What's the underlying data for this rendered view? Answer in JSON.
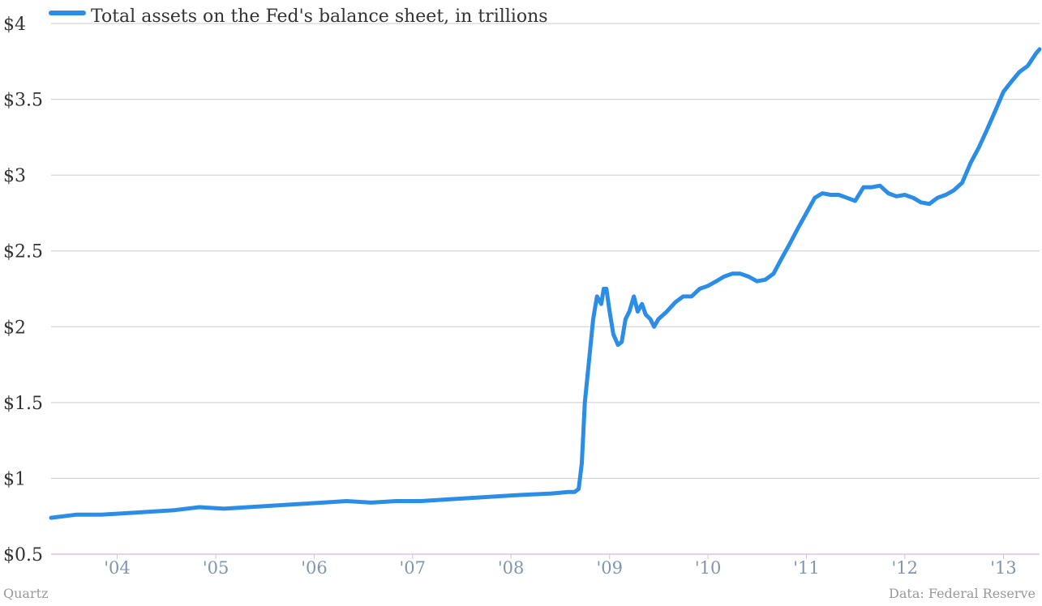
{
  "chart_data": {
    "type": "line",
    "legend_position": "top-left",
    "grid": true,
    "ylim": [
      0.5,
      4
    ],
    "xlim": [
      "2003-05-01",
      "2013-05-15"
    ],
    "y_ticks": [
      {
        "value": 0.5,
        "label": "$0.5"
      },
      {
        "value": 1,
        "label": "$1"
      },
      {
        "value": 1.5,
        "label": "$1.5"
      },
      {
        "value": 2,
        "label": "$2"
      },
      {
        "value": 2.5,
        "label": "$2.5"
      },
      {
        "value": 3,
        "label": "$3"
      },
      {
        "value": 3.5,
        "label": "$3.5"
      },
      {
        "value": 4,
        "label": "$4"
      }
    ],
    "x_ticks": [
      {
        "date": "2004-01-01",
        "label": "'04"
      },
      {
        "date": "2005-01-01",
        "label": "'05"
      },
      {
        "date": "2006-01-01",
        "label": "'06"
      },
      {
        "date": "2007-01-01",
        "label": "'07"
      },
      {
        "date": "2008-01-01",
        "label": "'08"
      },
      {
        "date": "2009-01-01",
        "label": "'09"
      },
      {
        "date": "2010-01-01",
        "label": "'10"
      },
      {
        "date": "2011-01-01",
        "label": "'11"
      },
      {
        "date": "2012-01-01",
        "label": "'12"
      },
      {
        "date": "2013-01-01",
        "label": "'13"
      }
    ],
    "series": [
      {
        "name": "Total assets on the Fed's balance sheet, in trillions",
        "color": "#2b8de6",
        "x": [
          "2003-05-01",
          "2003-08-01",
          "2003-11-01",
          "2004-02-01",
          "2004-05-01",
          "2004-08-01",
          "2004-11-01",
          "2005-02-01",
          "2005-05-01",
          "2005-08-01",
          "2005-11-01",
          "2006-02-01",
          "2006-05-01",
          "2006-08-01",
          "2006-11-01",
          "2007-02-01",
          "2007-05-01",
          "2007-08-01",
          "2007-11-01",
          "2008-02-01",
          "2008-06-01",
          "2008-08-01",
          "2008-08-24",
          "2008-09-08",
          "2008-09-20",
          "2008-10-01",
          "2008-10-15",
          "2008-11-01",
          "2008-11-15",
          "2008-12-01",
          "2008-12-10",
          "2008-12-20",
          "2009-01-01",
          "2009-01-15",
          "2009-02-01",
          "2009-02-15",
          "2009-03-01",
          "2009-03-15",
          "2009-04-01",
          "2009-04-15",
          "2009-05-01",
          "2009-05-15",
          "2009-06-01",
          "2009-06-15",
          "2009-07-01",
          "2009-08-01",
          "2009-09-01",
          "2009-10-01",
          "2009-11-01",
          "2009-12-01",
          "2010-01-01",
          "2010-02-01",
          "2010-03-01",
          "2010-04-01",
          "2010-05-01",
          "2010-06-01",
          "2010-07-01",
          "2010-08-01",
          "2010-09-01",
          "2010-10-01",
          "2010-11-01",
          "2010-12-01",
          "2011-01-01",
          "2011-02-01",
          "2011-03-01",
          "2011-04-01",
          "2011-05-01",
          "2011-06-01",
          "2011-07-01",
          "2011-08-01",
          "2011-09-01",
          "2011-10-01",
          "2011-11-01",
          "2011-12-01",
          "2012-01-01",
          "2012-02-01",
          "2012-03-01",
          "2012-04-01",
          "2012-05-01",
          "2012-06-01",
          "2012-07-01",
          "2012-08-01",
          "2012-09-01",
          "2012-10-01",
          "2012-11-01",
          "2012-12-01",
          "2013-01-01",
          "2013-02-01",
          "2013-03-01",
          "2013-04-01",
          "2013-05-01",
          "2013-05-15"
        ],
        "values": [
          0.74,
          0.76,
          0.76,
          0.77,
          0.78,
          0.79,
          0.81,
          0.8,
          0.81,
          0.82,
          0.83,
          0.84,
          0.85,
          0.84,
          0.85,
          0.85,
          0.86,
          0.87,
          0.88,
          0.89,
          0.9,
          0.91,
          0.91,
          0.93,
          1.1,
          1.5,
          1.75,
          2.05,
          2.2,
          2.15,
          2.25,
          2.25,
          2.1,
          1.95,
          1.88,
          1.9,
          2.05,
          2.1,
          2.2,
          2.1,
          2.15,
          2.08,
          2.05,
          2.0,
          2.05,
          2.1,
          2.16,
          2.2,
          2.2,
          2.25,
          2.27,
          2.3,
          2.33,
          2.35,
          2.35,
          2.33,
          2.3,
          2.31,
          2.35,
          2.45,
          2.55,
          2.65,
          2.75,
          2.85,
          2.88,
          2.87,
          2.87,
          2.85,
          2.83,
          2.92,
          2.92,
          2.93,
          2.88,
          2.86,
          2.87,
          2.85,
          2.82,
          2.81,
          2.85,
          2.87,
          2.9,
          2.95,
          3.08,
          3.18,
          3.3,
          3.42,
          3.55,
          3.62,
          3.68,
          3.72,
          3.8,
          3.83
        ]
      }
    ]
  },
  "footer": {
    "source_left": "Quartz",
    "source_right": "Data: Federal Reserve"
  }
}
